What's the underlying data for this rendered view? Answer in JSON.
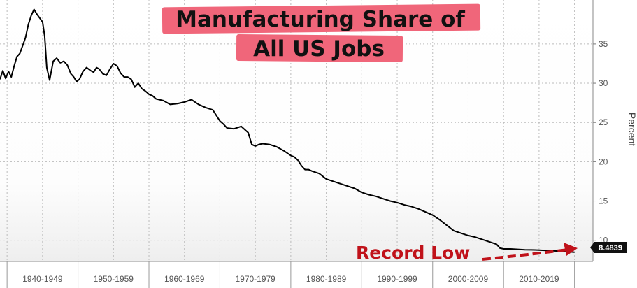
{
  "chart_data": {
    "type": "line",
    "title_line1": "Manufacturing Share of",
    "title_line2": "All US Jobs",
    "ylabel": "Percent",
    "xlim": [
      1939,
      2022.6
    ],
    "ylim": [
      7.3,
      40.6
    ],
    "grid": true,
    "y_ticks": [
      10,
      15,
      20,
      25,
      30,
      35
    ],
    "x_categories": [
      "1940-1949",
      "1950-1959",
      "1960-1969",
      "1970-1979",
      "1980-1989",
      "1990-1999",
      "2000-2009",
      "2010-2019"
    ],
    "series": [
      {
        "x": [
          1939.0,
          1939.4,
          1939.8,
          1940.2,
          1940.6,
          1941.0,
          1941.4,
          1941.8,
          1942.2,
          1942.6,
          1943.0,
          1943.4,
          1943.8,
          1944.2,
          1944.6,
          1945.0,
          1945.3,
          1945.6,
          1946.0,
          1946.5,
          1947.0,
          1947.5,
          1948.0,
          1948.5,
          1949.0,
          1949.4,
          1949.8,
          1950.2,
          1950.7,
          1951.2,
          1951.8,
          1952.2,
          1952.6,
          1953.0,
          1953.5,
          1954.0,
          1954.5,
          1955.0,
          1955.5,
          1956.0,
          1956.5,
          1957.0,
          1957.5,
          1958.0,
          1958.5,
          1959.0,
          1959.5,
          1960.0,
          1960.5,
          1961.0,
          1962.0,
          1963.0,
          1964.0,
          1965.0,
          1966.0,
          1967.0,
          1968.0,
          1969.0,
          1970.0,
          1970.5,
          1971.0,
          1972.0,
          1973.0,
          1974.0,
          1974.5,
          1975.0,
          1975.5,
          1976.0,
          1977.0,
          1978.0,
          1979.0,
          1980.0,
          1980.5,
          1981.0,
          1981.5,
          1982.0,
          1982.5,
          1983.0,
          1984.0,
          1985.0,
          1986.0,
          1987.0,
          1988.0,
          1989.0,
          1990.0,
          1991.0,
          1992.0,
          1993.0,
          1994.0,
          1995.0,
          1996.0,
          1997.0,
          1998.0,
          1999.0,
          2000.0,
          2001.0,
          2002.0,
          2003.0,
          2004.0,
          2005.0,
          2006.0,
          2007.0,
          2008.0,
          2009.0,
          2009.5,
          2010.0,
          2011.0,
          2012.0,
          2013.0,
          2014.0,
          2015.0,
          2016.0,
          2017.0,
          2018.0,
          2019.0,
          2020.0
        ],
        "values": [
          30.5,
          31.6,
          30.6,
          31.5,
          30.8,
          32.2,
          33.4,
          33.8,
          34.8,
          35.8,
          37.5,
          38.6,
          39.4,
          38.8,
          38.3,
          37.8,
          36.0,
          32.0,
          30.4,
          32.8,
          33.2,
          32.6,
          32.8,
          32.3,
          31.2,
          30.8,
          30.2,
          30.5,
          31.5,
          32.0,
          31.6,
          31.4,
          32.0,
          31.8,
          31.2,
          31.0,
          31.8,
          32.5,
          32.2,
          31.3,
          30.8,
          30.8,
          30.5,
          29.5,
          30.0,
          29.3,
          29.0,
          28.6,
          28.4,
          28.0,
          27.8,
          27.3,
          27.4,
          27.6,
          27.9,
          27.3,
          26.9,
          26.6,
          25.2,
          24.8,
          24.3,
          24.2,
          24.5,
          23.7,
          22.2,
          22.0,
          22.2,
          22.3,
          22.2,
          21.9,
          21.4,
          20.8,
          20.6,
          20.2,
          19.5,
          19.0,
          19.0,
          18.8,
          18.5,
          17.8,
          17.5,
          17.2,
          16.9,
          16.6,
          16.1,
          15.8,
          15.6,
          15.3,
          15.0,
          14.8,
          14.5,
          14.3,
          14.0,
          13.6,
          13.2,
          12.6,
          11.9,
          11.2,
          10.9,
          10.6,
          10.4,
          10.1,
          9.8,
          9.5,
          9.0,
          8.9,
          8.9,
          8.85,
          8.8,
          8.78,
          8.75,
          8.7,
          8.65,
          8.6,
          8.55,
          8.48
        ]
      }
    ],
    "last_value_label": "8.4839",
    "annotation": "Record Low",
    "colors": {
      "line": "#000000",
      "title_highlight": "#f0667a",
      "annotation": "#c0121a",
      "badge": "#111111"
    }
  }
}
